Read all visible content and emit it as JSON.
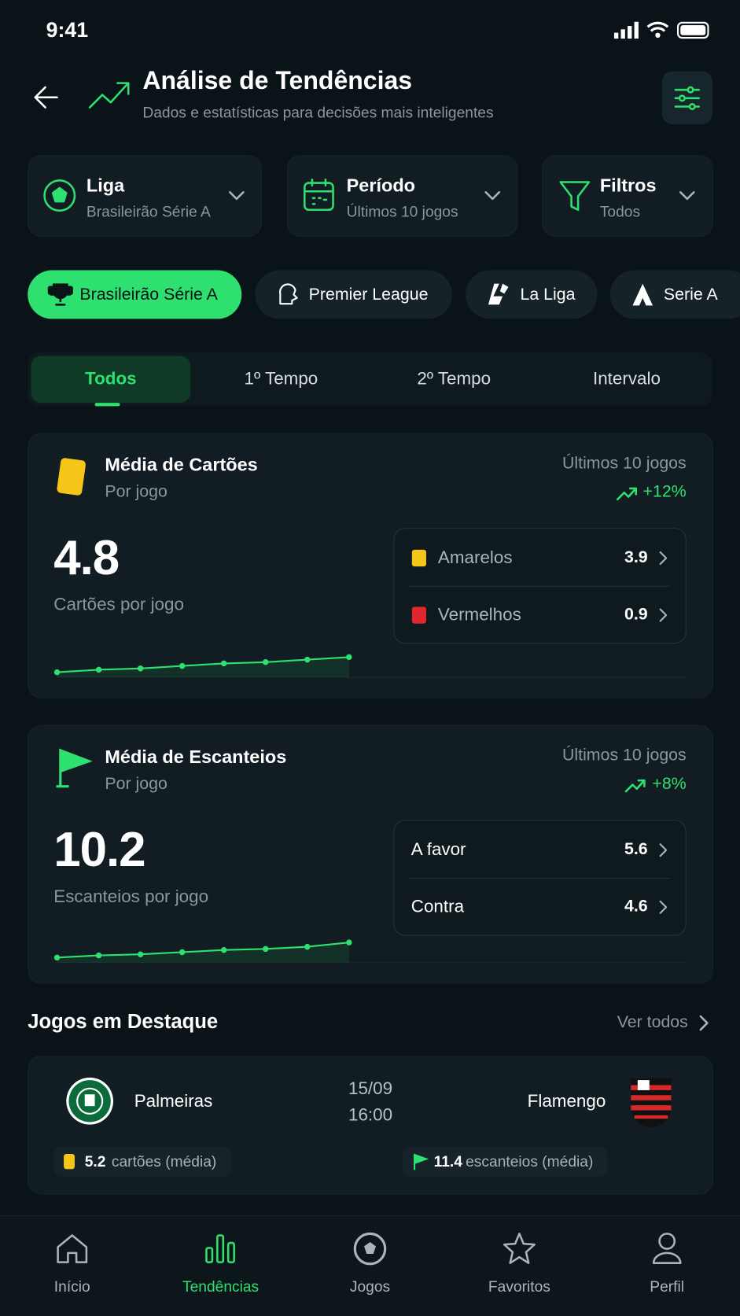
{
  "status_bar": {
    "time": "9:41"
  },
  "header": {
    "title": "Análise de Tendências",
    "subtitle": "Dados e estatísticas para decisões mais inteligentes"
  },
  "filters": [
    {
      "label": "Liga",
      "value": "Brasileirão Série A"
    },
    {
      "label": "Período",
      "value": "Últimos 10 jogos"
    },
    {
      "label": "Filtros",
      "value": "Todos"
    }
  ],
  "leagues": [
    "Brasileirão Série A",
    "Premier League",
    "La Liga",
    "Serie A"
  ],
  "tabs": [
    "Todos",
    "1º Tempo",
    "2º Tempo",
    "Intervalo"
  ],
  "cards": [
    {
      "title": "Média de Cartões",
      "subtitle": "Por jogo",
      "period": "Últimos 10 jogos",
      "trend": "+12%",
      "value": 4.8,
      "value_caption": "Cartões por jogo",
      "breakdown": [
        {
          "label": "Amarelos",
          "value": 3.9
        },
        {
          "label": "Vermelhos",
          "value": 0.9
        }
      ],
      "sparkline": [
        4.2,
        4.3,
        4.35,
        4.45,
        4.55,
        4.6,
        4.7,
        4.8
      ]
    },
    {
      "title": "Média de Escanteios",
      "subtitle": "Por jogo",
      "period": "Últimos 10 jogos",
      "trend": "+8%",
      "value": 10.2,
      "value_caption": "Escanteios por jogo",
      "breakdown": [
        {
          "label": "A favor",
          "value": 5.6
        },
        {
          "label": "Contra",
          "value": 4.6
        }
      ],
      "sparkline": [
        9.5,
        9.6,
        9.65,
        9.75,
        9.85,
        9.9,
        10.0,
        10.2
      ]
    }
  ],
  "featured": {
    "title": "Jogos em Destaque",
    "see_all": "Ver todos",
    "match": {
      "home": "Palmeiras",
      "away": "Flamengo",
      "date": "15/09",
      "time": "16:00",
      "stats": [
        {
          "value": 5.2,
          "label": "cartões (média)"
        },
        {
          "value": 11.4,
          "label": "escanteios (média)"
        }
      ]
    }
  },
  "nav": [
    "Início",
    "Tendências",
    "Jogos",
    "Favoritos",
    "Perfil"
  ]
}
